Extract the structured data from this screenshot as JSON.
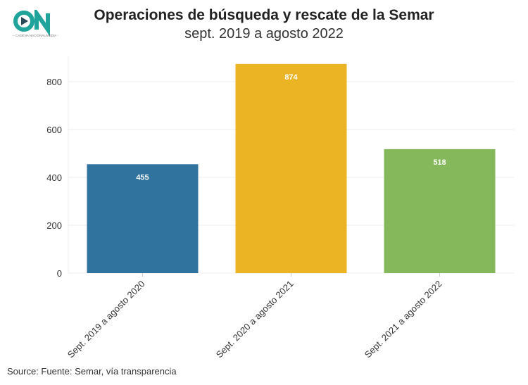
{
  "logo": {
    "text": "CN",
    "tagline": "CADENA NACIONAL MEDIA"
  },
  "chart_data": {
    "type": "bar",
    "title": "Operaciones de búsqueda y rescate de la Semar",
    "subtitle": "sept. 2019 a agosto 2022",
    "categories": [
      "Sept. 2019 a agosto 2020",
      "Sept. 2020 a agosto 2021",
      "Sept. 2021 a agosto 2022"
    ],
    "values": [
      455,
      874,
      518
    ],
    "value_labels": [
      "455",
      "874",
      "518"
    ],
    "colors": [
      "#31739f",
      "#ebb424",
      "#84b85b"
    ],
    "yticks": [
      0,
      200,
      400,
      600,
      800
    ],
    "ytick_labels": [
      "0",
      "200",
      "400",
      "600",
      "800"
    ],
    "ylim": [
      0,
      900
    ],
    "xlabel": "",
    "ylabel": "",
    "grid": true,
    "source": "Source: Fuente: Semar, vía transparencia"
  }
}
